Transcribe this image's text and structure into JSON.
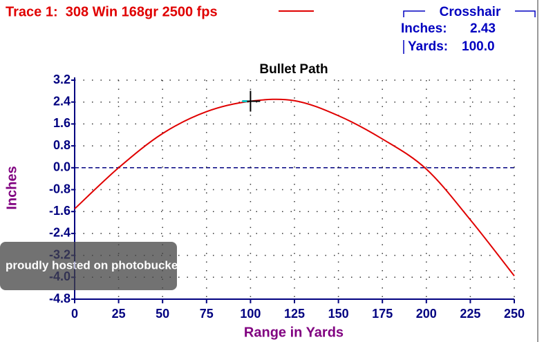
{
  "chart_data": {
    "type": "line",
    "title": "Bullet Path",
    "x_label": "Range in Yards",
    "y_label": "Inches",
    "x": [
      0,
      25,
      50,
      75,
      100,
      125,
      150,
      175,
      200,
      225,
      250
    ],
    "series": [
      {
        "name": "Trace 1:  308 Win 168gr 2500 fps",
        "color": "#e00000",
        "values": [
          -1.5,
          0.0,
          1.25,
          2.05,
          2.43,
          2.45,
          1.9,
          1.05,
          -0.05,
          -1.9,
          -3.95
        ]
      }
    ],
    "xlim": [
      0,
      250
    ],
    "xticks": [
      0,
      25,
      50,
      75,
      100,
      125,
      150,
      175,
      200,
      225,
      250
    ],
    "ylim": [
      -4.8,
      3.2
    ],
    "yticks": [
      3.2,
      2.4,
      1.6,
      0.8,
      {
        "value": 0,
        "label": "0.0"
      },
      -0.8,
      -1.6,
      -2.4,
      -3.2,
      {
        "value": -4,
        "label": "-4.0"
      },
      -4.8
    ],
    "grid": true,
    "legend": "top-left",
    "crosshair": {
      "title": "Crosshair",
      "inches_label": "Inches:",
      "inches": 2.43,
      "yards_label": "Yards:",
      "yards": {
        "value": 100,
        "label": "100.0"
      }
    },
    "watermark": "proudly hosted on photobucket"
  }
}
